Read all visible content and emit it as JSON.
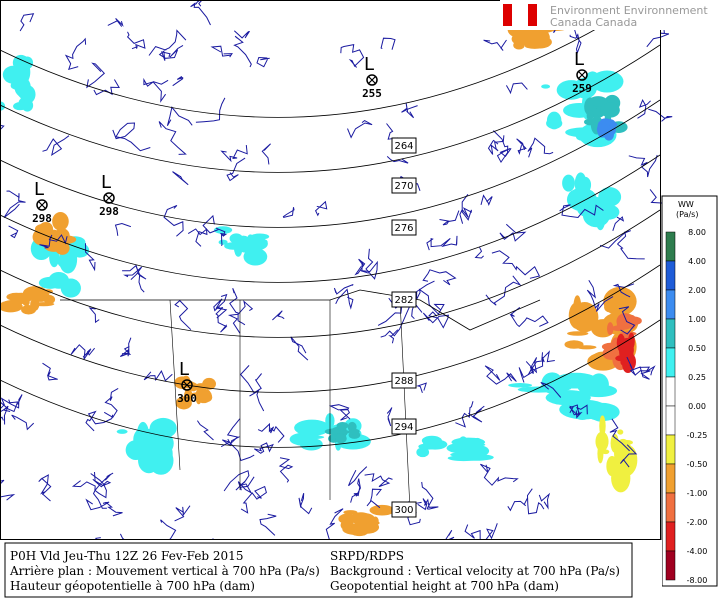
{
  "logo": {
    "line1": "Environment Environnement",
    "line2": "Canada Canada"
  },
  "lows": [
    {
      "symbol": "L",
      "value": "255"
    },
    {
      "symbol": "L",
      "value": "259"
    },
    {
      "symbol": "L",
      "value": "298"
    },
    {
      "symbol": "L",
      "value": "298"
    },
    {
      "symbol": "L",
      "value": "300"
    }
  ],
  "contour_labels": [
    "264",
    "270",
    "276",
    "282",
    "288",
    "294",
    "300"
  ],
  "legend": {
    "title_line1": "WW",
    "title_line2": "(Pa/s)",
    "labels": [
      "8.00",
      "4.00",
      "2.00",
      "1.00",
      "0.50",
      "0.25",
      "0.00",
      "-0.25",
      "-0.50",
      "-1.00",
      "-2.00",
      "-4.00",
      "-8.00"
    ],
    "colors": [
      "#2e7d4e",
      "#1e5cd8",
      "#3c8cf0",
      "#2fbfbf",
      "#40f0f0",
      "#ffffff",
      "#ffffff",
      "#f0f040",
      "#f0a030",
      "#f07040",
      "#e02020",
      "#a00020"
    ]
  },
  "footer": {
    "left": [
      "P0H Vld Jeu-Thu 12Z 26 Fev-Feb 2015",
      "Arrière plan : Mouvement vertical à 700 hPa (Pa/s)",
      "Hauteur géopotentielle à 700 hPa (dam)"
    ],
    "right": [
      "SRPD/RDPS",
      "Background : Vertical velocity at 700 hPa (Pa/s)",
      "Geopotential height at 700 hPa (dam)"
    ]
  }
}
